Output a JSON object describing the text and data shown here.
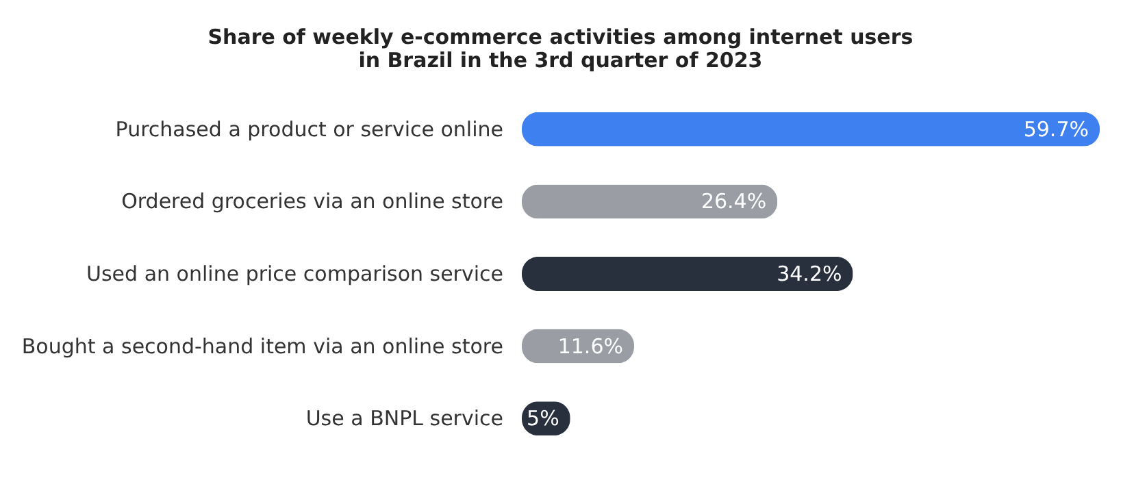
{
  "chart_data": {
    "type": "bar",
    "orientation": "horizontal",
    "title": [
      "Share of weekly e-commerce activities among internet users",
      "in Brazil in the 3rd quarter of 2023"
    ],
    "categories": [
      "Purchased a product or service online",
      "Ordered groceries via an online store",
      "Used an online price comparison service",
      "Bought a second-hand item via an online store",
      "Use a BNPL service"
    ],
    "values": [
      59.7,
      26.4,
      34.2,
      11.6,
      5
    ],
    "value_labels": [
      "59.7%",
      "26.4%",
      "34.2%",
      "11.6%",
      "5%"
    ],
    "colors": [
      "#3f80f0",
      "#9a9ea4",
      "#28303e",
      "#9a9ea4",
      "#28303e"
    ],
    "grid": false
  }
}
